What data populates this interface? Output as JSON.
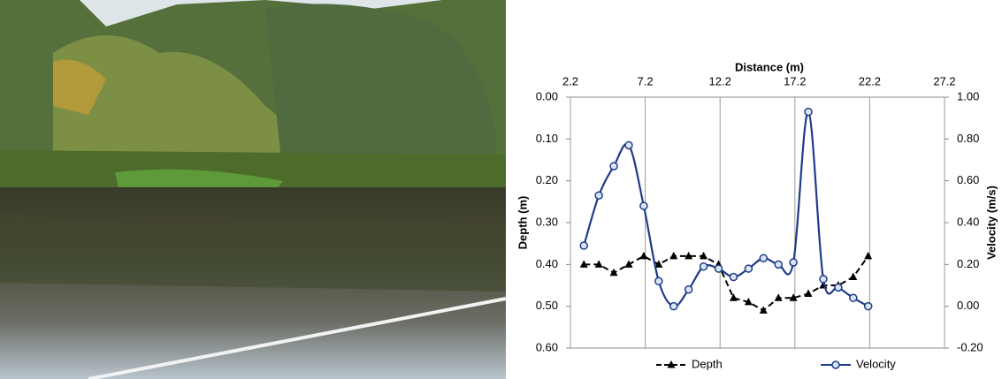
{
  "chart_data": {
    "type": "line",
    "x_label": "Distance (m)",
    "y_label": "Depth (m)",
    "y2_label": "Velocity (m/s)",
    "x": [
      3.1,
      4.1,
      5.1,
      6.1,
      7.1,
      8.1,
      9.1,
      10.1,
      11.1,
      12.1,
      13.1,
      14.1,
      15.1,
      16.1,
      17.1,
      18.1,
      19.1,
      20.1,
      21.1,
      22.1
    ],
    "series": [
      {
        "name": "Depth",
        "color": "#000000",
        "axis": "y",
        "marker": "triangle",
        "dashed": true,
        "smooth": false,
        "values": [
          0.4,
          0.4,
          0.42,
          0.4,
          0.38,
          0.4,
          0.38,
          0.38,
          0.38,
          0.4,
          0.48,
          0.49,
          0.51,
          0.48,
          0.48,
          0.47,
          0.45,
          0.45,
          0.43,
          0.38
        ]
      },
      {
        "name": "Velocity",
        "color": "#1f3c88",
        "axis": "y2",
        "marker": "circle",
        "dashed": false,
        "smooth": true,
        "values": [
          0.29,
          0.53,
          0.67,
          0.77,
          0.48,
          0.12,
          0.0,
          0.08,
          0.19,
          0.18,
          0.14,
          0.18,
          0.23,
          0.2,
          0.21,
          0.93,
          0.13,
          0.09,
          0.04,
          0.0
        ]
      }
    ],
    "xlim": [
      2.2,
      27.2
    ],
    "xticks": [
      2.2,
      7.2,
      12.2,
      17.2,
      22.2,
      27.2
    ],
    "x_axis_position": "top",
    "ylim": [
      0,
      0.6
    ],
    "y_reversed": true,
    "yticks": [
      {
        "value": 0,
        "label": "0.00"
      },
      {
        "value": 0.1,
        "label": "0.10"
      },
      {
        "value": 0.2,
        "label": "0.20"
      },
      {
        "value": 0.3,
        "label": "0.30"
      },
      {
        "value": 0.4,
        "label": "0.40"
      },
      {
        "value": 0.5,
        "label": "0.50"
      },
      {
        "value": 0.6,
        "label": "0.60"
      }
    ],
    "y2lim": [
      -0.2,
      1.0
    ],
    "y2ticks": [
      {
        "value": 1.0,
        "label": "1.00"
      },
      {
        "value": 0.8,
        "label": "0.80"
      },
      {
        "value": 0.6,
        "label": "0.60"
      },
      {
        "value": 0.4,
        "label": "0.40"
      },
      {
        "value": 0.2,
        "label": "0.20"
      },
      {
        "value": 0,
        "label": "0.00"
      },
      {
        "value": -0.2,
        "label": "-0.20"
      }
    ],
    "grid": "x",
    "legend": "bottom"
  }
}
